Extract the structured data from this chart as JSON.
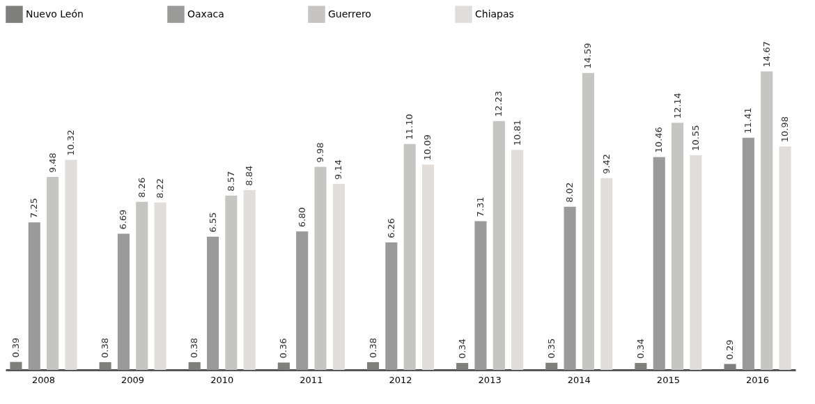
{
  "chart_data": {
    "type": "bar",
    "categories": [
      "2008",
      "2009",
      "2010",
      "2011",
      "2012",
      "2013",
      "2014",
      "2015",
      "2016"
    ],
    "series": [
      {
        "name": "Nuevo León",
        "color": "#7f807e",
        "values": [
          0.39,
          0.38,
          0.38,
          0.36,
          0.38,
          0.34,
          0.35,
          0.34,
          0.29
        ],
        "value_labels": [
          "0.39",
          "0.38",
          "0.38",
          "0.36",
          "0.38",
          "0.34",
          "0.35",
          "0.34",
          "0.29"
        ]
      },
      {
        "name": "Oaxaca",
        "color": "#9a9b99",
        "values": [
          7.25,
          6.69,
          6.55,
          6.8,
          6.26,
          7.31,
          8.02,
          10.46,
          11.41
        ],
        "value_labels": [
          "7.25",
          "6.69",
          "6.55",
          "6.80",
          "6.26",
          "7.31",
          "8.02",
          "10.46",
          "11.41"
        ]
      },
      {
        "name": "Guerrero",
        "color": "#c6c5c1",
        "values": [
          9.48,
          8.26,
          8.57,
          9.98,
          11.1,
          12.23,
          14.59,
          12.14,
          14.67
        ],
        "value_labels": [
          "9.48",
          "8.26",
          "8.57",
          "9.98",
          "11.10",
          "12.23",
          "14.59",
          "12.14",
          "14.67"
        ]
      },
      {
        "name": "Chiapas",
        "color": "#e0dddb",
        "values": [
          10.32,
          8.22,
          8.84,
          9.14,
          10.09,
          10.81,
          9.42,
          10.55,
          10.98
        ],
        "value_labels": [
          "10.32",
          "8.22",
          "8.84",
          "9.14",
          "10.09",
          "10.81",
          "9.42",
          "10.55",
          "10.98"
        ]
      }
    ],
    "legend": "top",
    "grid": false
  }
}
